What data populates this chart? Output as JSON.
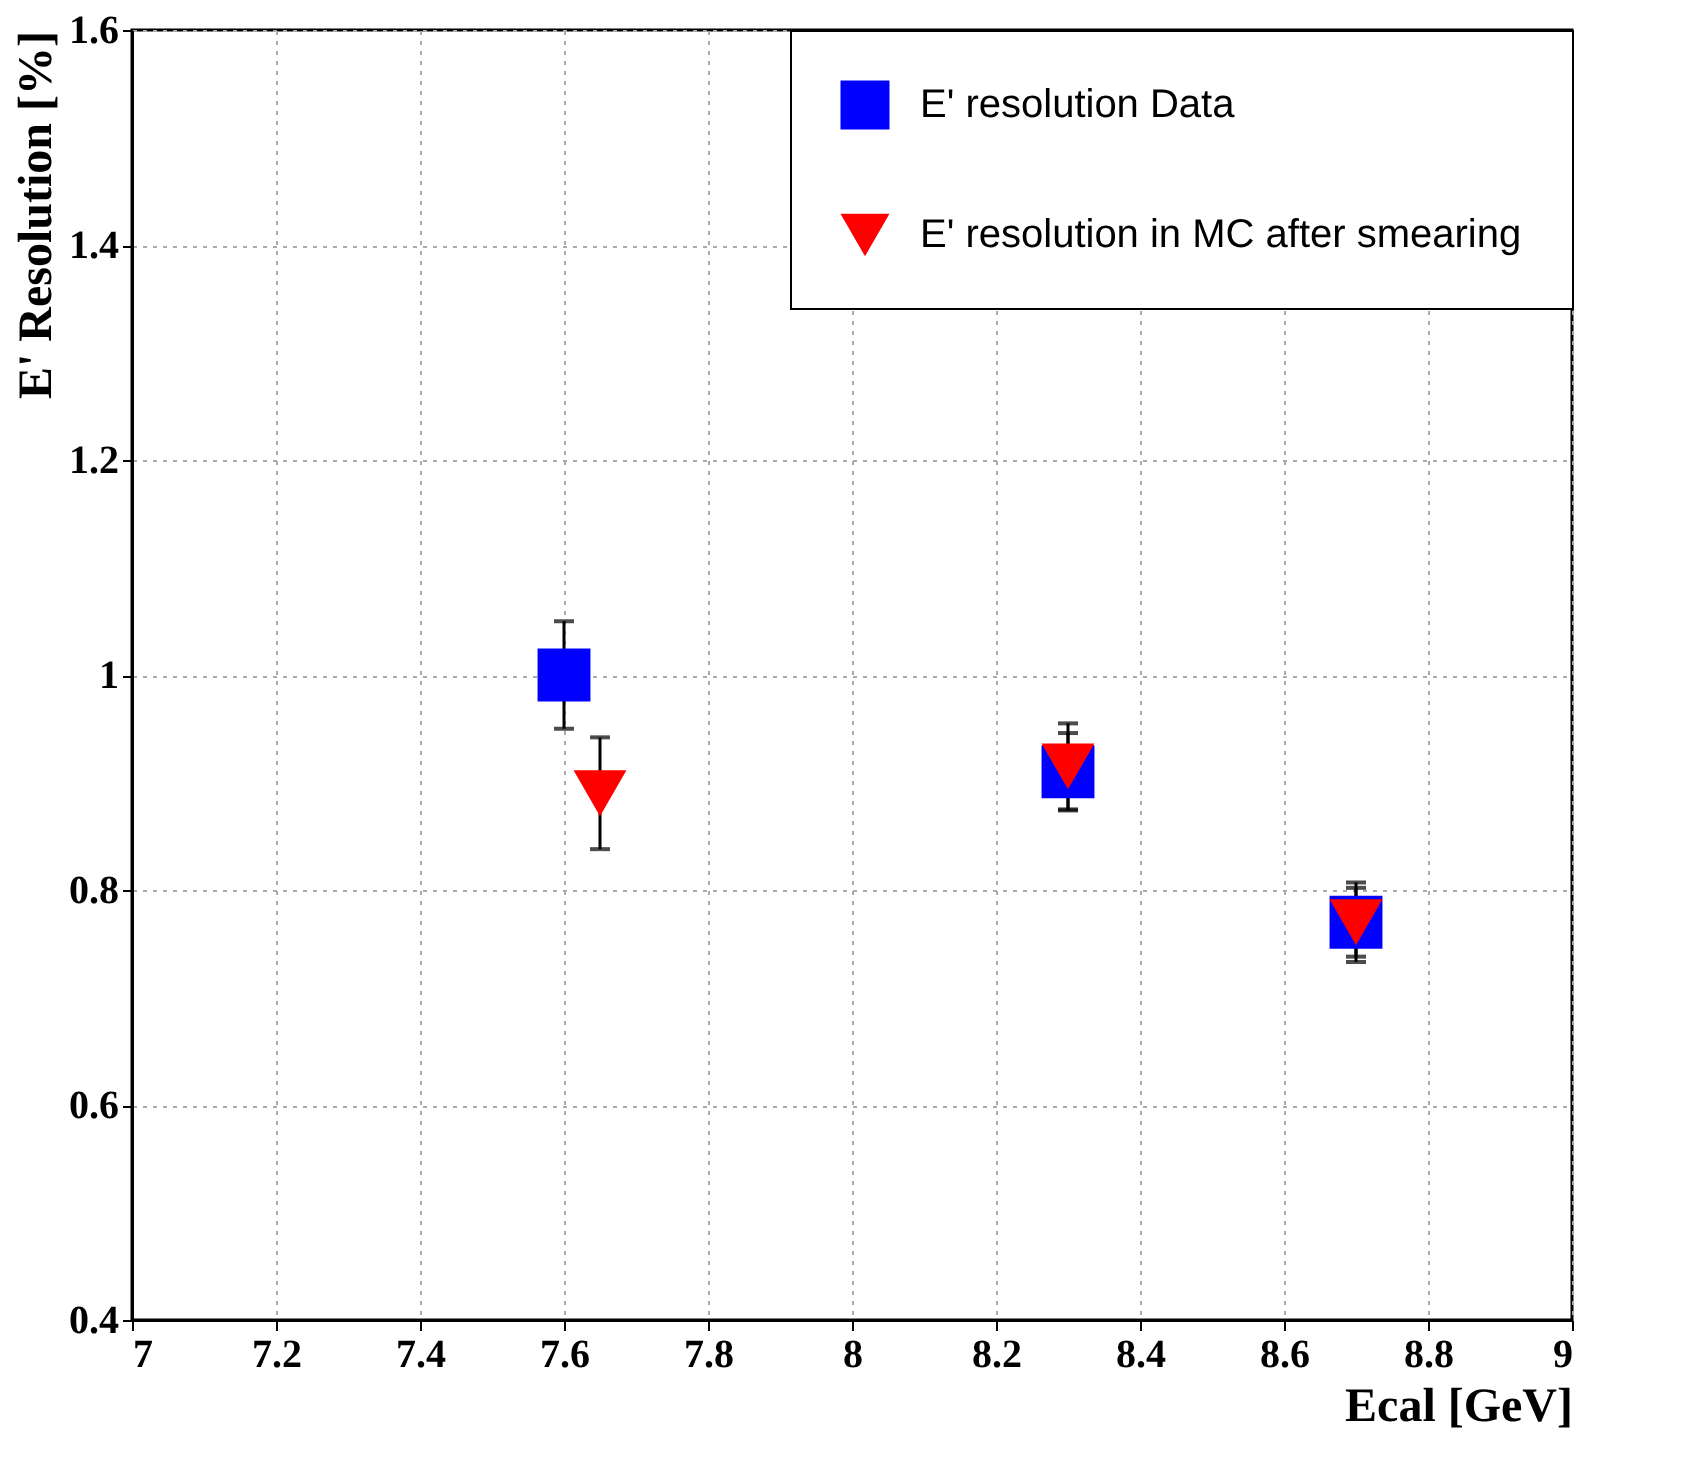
{
  "chart_data": {
    "type": "scatter",
    "xlabel": "Ecal [GeV]",
    "ylabel": "E' Resolution [%]",
    "xlim": [
      7,
      9
    ],
    "xticks": [
      7,
      7.2,
      7.4,
      7.6,
      7.8,
      8,
      8.2,
      8.4,
      8.6,
      8.8,
      9
    ],
    "ylim": [
      0.4,
      1.6
    ],
    "yticks": [
      0.4,
      0.6,
      0.8,
      1,
      1.2,
      1.4,
      1.6
    ],
    "grid": true,
    "legend": "top right",
    "series": [
      {
        "name": "E' resolution Data",
        "color": "#0000ff",
        "marker": "square",
        "x": [
          7.6,
          8.3,
          8.7
        ],
        "values": [
          1.0,
          0.91,
          0.77
        ],
        "errors": [
          0.05,
          0.036,
          0.032
        ]
      },
      {
        "name": "E' resolution in MC after smearing",
        "color": "#ff0000",
        "marker": "triangle",
        "x": [
          7.65,
          8.3,
          8.7
        ],
        "values": [
          0.89,
          0.915,
          0.77
        ],
        "errors": [
          0.052,
          0.04,
          0.037
        ]
      }
    ]
  }
}
